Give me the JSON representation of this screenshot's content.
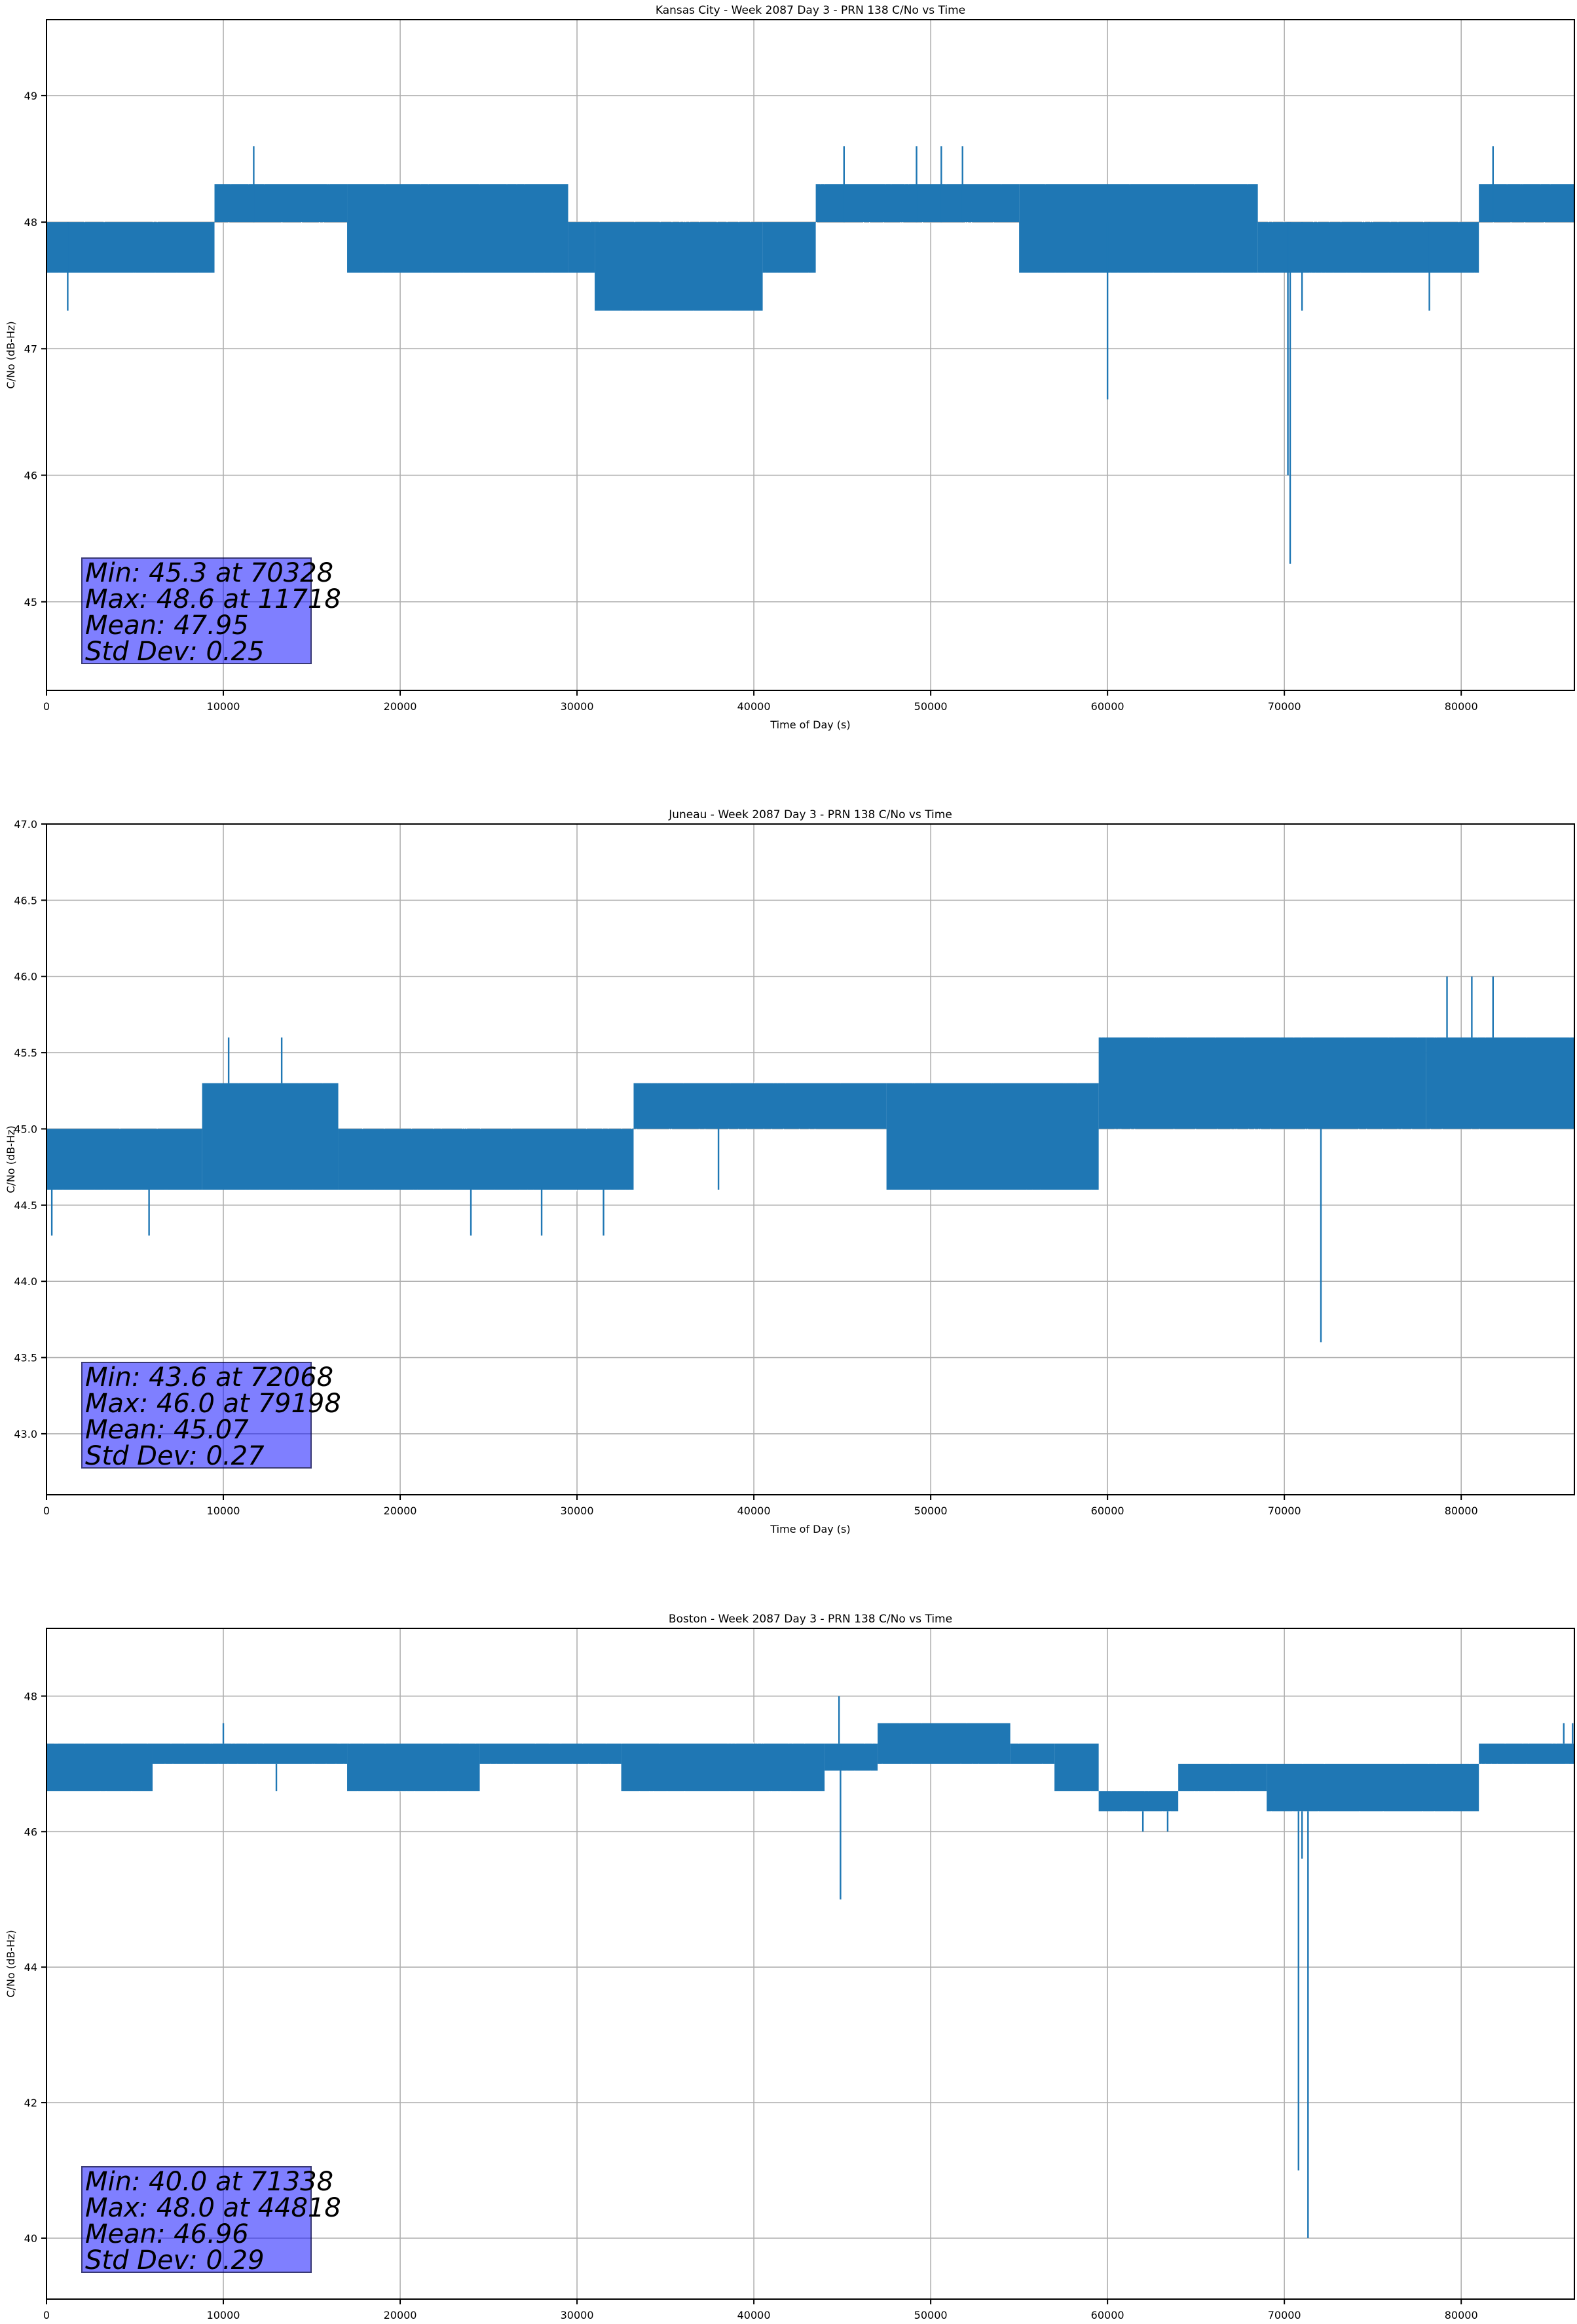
{
  "colors": {
    "series": "#1f77b4",
    "grid": "#b0b0b0",
    "stats_box": "#7f7fff"
  },
  "chart_data": [
    {
      "type": "line",
      "title": "Kansas City - Week 2087 Day 3 - PRN 138 C/No vs Time",
      "xlabel": "Time of Day (s)",
      "ylabel": "C/No (dB-Hz)",
      "xlim": [
        0,
        86400
      ],
      "ylim": [
        44.3,
        49.6
      ],
      "xticks": [
        0,
        10000,
        20000,
        30000,
        40000,
        50000,
        60000,
        70000,
        80000
      ],
      "yticks": [
        45,
        46,
        47,
        48,
        49
      ],
      "ytick_labels": [
        "45",
        "46",
        "47",
        "48",
        "49"
      ],
      "grid": true,
      "series": [
        {
          "segments": [
            {
              "x0": 0,
              "x1": 9500,
              "low": 47.6,
              "high": 48.0
            },
            {
              "x0": 9500,
              "x1": 17000,
              "low": 48.0,
              "high": 48.3
            },
            {
              "x0": 17000,
              "x1": 29500,
              "low": 47.6,
              "high": 48.3
            },
            {
              "x0": 29500,
              "x1": 31000,
              "low": 47.6,
              "high": 48.0
            },
            {
              "x0": 31000,
              "x1": 40500,
              "low": 47.3,
              "high": 48.0
            },
            {
              "x0": 40500,
              "x1": 43500,
              "low": 47.6,
              "high": 48.0
            },
            {
              "x0": 43500,
              "x1": 55000,
              "low": 48.0,
              "high": 48.3
            },
            {
              "x0": 55000,
              "x1": 68500,
              "low": 47.6,
              "high": 48.3
            },
            {
              "x0": 68500,
              "x1": 81000,
              "low": 47.6,
              "high": 48.0
            },
            {
              "x0": 81000,
              "x1": 86400,
              "low": 48.0,
              "high": 48.3
            }
          ],
          "spikes": [
            {
              "x": 1200,
              "low": 47.3,
              "high": 48.0
            },
            {
              "x": 11718,
              "low": 48.0,
              "high": 48.6
            },
            {
              "x": 45100,
              "low": 48.0,
              "high": 48.6
            },
            {
              "x": 49200,
              "low": 48.0,
              "high": 48.6
            },
            {
              "x": 50600,
              "low": 48.0,
              "high": 48.6
            },
            {
              "x": 51800,
              "low": 48.0,
              "high": 48.6
            },
            {
              "x": 60000,
              "low": 46.6,
              "high": 48.0
            },
            {
              "x": 70200,
              "low": 46.0,
              "high": 48.0
            },
            {
              "x": 70328,
              "low": 45.3,
              "high": 48.0
            },
            {
              "x": 71000,
              "low": 47.3,
              "high": 48.0
            },
            {
              "x": 78200,
              "low": 47.3,
              "high": 48.0
            },
            {
              "x": 81800,
              "low": 48.0,
              "high": 48.6
            }
          ]
        }
      ]
    },
    {
      "type": "line",
      "title": "Juneau - Week 2087 Day 3 - PRN 138 C/No vs Time",
      "xlabel": "Time of Day (s)",
      "ylabel": "C/No (dB-Hz)",
      "xlim": [
        0,
        86400
      ],
      "ylim": [
        42.6,
        47.0
      ],
      "xticks": [
        0,
        10000,
        20000,
        30000,
        40000,
        50000,
        60000,
        70000,
        80000
      ],
      "yticks": [
        43.0,
        43.5,
        44.0,
        44.5,
        45.0,
        45.5,
        46.0,
        46.5,
        47.0
      ],
      "ytick_labels": [
        "43.0",
        "43.5",
        "44.0",
        "44.5",
        "45.0",
        "45.5",
        "46.0",
        "46.5",
        "47.0"
      ],
      "grid": true,
      "series": [
        {
          "segments": [
            {
              "x0": 0,
              "x1": 8800,
              "low": 44.6,
              "high": 45.0
            },
            {
              "x0": 8800,
              "x1": 16500,
              "low": 44.6,
              "high": 45.3
            },
            {
              "x0": 16500,
              "x1": 33200,
              "low": 44.6,
              "high": 45.0
            },
            {
              "x0": 33200,
              "x1": 47500,
              "low": 45.0,
              "high": 45.3
            },
            {
              "x0": 47500,
              "x1": 59500,
              "low": 44.6,
              "high": 45.3
            },
            {
              "x0": 59500,
              "x1": 78000,
              "low": 45.0,
              "high": 45.6
            },
            {
              "x0": 78000,
              "x1": 86400,
              "low": 45.0,
              "high": 45.6
            }
          ],
          "spikes": [
            {
              "x": 300,
              "low": 44.3,
              "high": 44.6
            },
            {
              "x": 5800,
              "low": 44.3,
              "high": 44.6
            },
            {
              "x": 10300,
              "low": 45.3,
              "high": 45.6
            },
            {
              "x": 13300,
              "low": 45.3,
              "high": 45.6
            },
            {
              "x": 24000,
              "low": 44.3,
              "high": 44.6
            },
            {
              "x": 28000,
              "low": 44.3,
              "high": 44.6
            },
            {
              "x": 31500,
              "low": 44.3,
              "high": 44.6
            },
            {
              "x": 38000,
              "low": 44.6,
              "high": 45.0
            },
            {
              "x": 72068,
              "low": 43.6,
              "high": 45.0
            },
            {
              "x": 79198,
              "low": 45.6,
              "high": 46.0
            },
            {
              "x": 80600,
              "low": 45.6,
              "high": 46.0
            },
            {
              "x": 81800,
              "low": 45.6,
              "high": 46.0
            }
          ]
        }
      ]
    },
    {
      "type": "line",
      "title": "Boston - Week 2087 Day 3 - PRN 138 C/No vs Time",
      "xlabel": "Time of Day (s)",
      "ylabel": "C/No (dB-Hz)",
      "xlim": [
        0,
        86400
      ],
      "ylim": [
        39.1,
        49.0
      ],
      "xticks": [
        0,
        10000,
        20000,
        30000,
        40000,
        50000,
        60000,
        70000,
        80000
      ],
      "yticks": [
        40,
        42,
        44,
        46,
        48
      ],
      "ytick_labels": [
        "40",
        "42",
        "44",
        "46",
        "48"
      ],
      "grid": true,
      "series": [
        {
          "segments": [
            {
              "x0": 0,
              "x1": 6000,
              "low": 46.6,
              "high": 47.3
            },
            {
              "x0": 6000,
              "x1": 17000,
              "low": 47.0,
              "high": 47.3
            },
            {
              "x0": 17000,
              "x1": 24500,
              "low": 46.6,
              "high": 47.3
            },
            {
              "x0": 24500,
              "x1": 32500,
              "low": 47.0,
              "high": 47.3
            },
            {
              "x0": 32500,
              "x1": 44000,
              "low": 46.6,
              "high": 47.3
            },
            {
              "x0": 44000,
              "x1": 47000,
              "low": 46.9,
              "high": 47.3
            },
            {
              "x0": 47000,
              "x1": 54500,
              "low": 47.0,
              "high": 47.6
            },
            {
              "x0": 54500,
              "x1": 57000,
              "low": 47.0,
              "high": 47.3
            },
            {
              "x0": 57000,
              "x1": 59500,
              "low": 46.6,
              "high": 47.3
            },
            {
              "x0": 59500,
              "x1": 64000,
              "low": 46.3,
              "high": 46.6
            },
            {
              "x0": 64000,
              "x1": 69000,
              "low": 46.6,
              "high": 47.0
            },
            {
              "x0": 69000,
              "x1": 81000,
              "low": 46.3,
              "high": 47.0
            },
            {
              "x0": 81000,
              "x1": 86400,
              "low": 47.0,
              "high": 47.3
            }
          ],
          "spikes": [
            {
              "x": 10000,
              "low": 47.3,
              "high": 47.6
            },
            {
              "x": 13000,
              "low": 46.6,
              "high": 47.0
            },
            {
              "x": 44818,
              "low": 47.3,
              "high": 48.0
            },
            {
              "x": 44900,
              "low": 45.0,
              "high": 47.0
            },
            {
              "x": 62000,
              "low": 46.0,
              "high": 46.3
            },
            {
              "x": 63400,
              "low": 46.0,
              "high": 46.3
            },
            {
              "x": 70800,
              "low": 41.0,
              "high": 46.3
            },
            {
              "x": 71000,
              "low": 45.6,
              "high": 46.3
            },
            {
              "x": 71338,
              "low": 40.0,
              "high": 46.3
            },
            {
              "x": 85800,
              "low": 47.3,
              "high": 47.6
            },
            {
              "x": 86300,
              "low": 47.3,
              "high": 47.6
            }
          ]
        }
      ]
    }
  ],
  "stats": [
    {
      "min": "Min: 45.3 at 70328",
      "max": "Max: 48.6 at 11718",
      "mean": "Mean: 47.95",
      "std": "Std Dev: 0.25"
    },
    {
      "min": "Min: 43.6 at 72068",
      "max": "Max: 46.0 at 79198",
      "mean": "Mean: 45.07",
      "std": "Std Dev: 0.27"
    },
    {
      "min": "Min: 40.0 at 71338",
      "max": "Max: 48.0 at 44818",
      "mean": "Mean: 46.96",
      "std": "Std Dev: 0.29"
    }
  ]
}
